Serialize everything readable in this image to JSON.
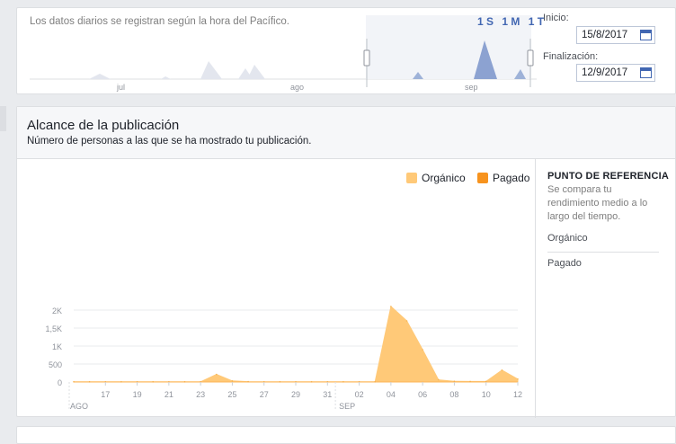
{
  "range": {
    "note": "Los datos diarios se registran según la hora del Pacífico.",
    "zoom": [
      "1 S",
      "1 M",
      "1 T"
    ],
    "start_label": "Inicio:",
    "start_value": "15/8/2017",
    "end_label": "Finalización:",
    "end_value": "12/9/2017",
    "month_labels": [
      "jul",
      "ago",
      "sep"
    ]
  },
  "reach": {
    "title": "Alcance de la publicación",
    "subtitle": "Número de personas a las que se ha mostrado tu publicación.",
    "legend": [
      {
        "label": "Orgánico",
        "color": "#ffc978"
      },
      {
        "label": "Pagado",
        "color": "#f7931e"
      }
    ]
  },
  "benchmark": {
    "title": "PUNTO DE REFERENCIA",
    "description": "Se compara tu rendimiento medio a lo largo del tiempo.",
    "rows": [
      "Orgánico",
      "Pagado"
    ]
  },
  "chart_data": {
    "type": "area",
    "x": [
      "15/8",
      "16/8",
      "17/8",
      "18/8",
      "19/8",
      "20/8",
      "21/8",
      "22/8",
      "23/8",
      "24/8",
      "25/8",
      "26/8",
      "27/8",
      "28/8",
      "29/8",
      "30/8",
      "31/8",
      "01/9",
      "02/9",
      "03/9",
      "04/9",
      "05/9",
      "06/9",
      "07/9",
      "08/9",
      "09/9",
      "10/9",
      "11/9",
      "12/9"
    ],
    "x_tick_labels": [
      "17",
      "19",
      "21",
      "23",
      "25",
      "27",
      "29",
      "31",
      "02",
      "04",
      "06",
      "08",
      "10",
      "12"
    ],
    "month_labels": [
      "AGO",
      "SEP"
    ],
    "y_tick_labels": [
      "0",
      "500",
      "1K",
      "1,5K",
      "2K"
    ],
    "ylim": [
      0,
      2200
    ],
    "series": [
      {
        "name": "Orgánico",
        "values": [
          5,
          5,
          5,
          5,
          5,
          5,
          5,
          5,
          5,
          210,
          30,
          10,
          5,
          5,
          5,
          5,
          5,
          5,
          5,
          5,
          2100,
          1700,
          900,
          60,
          20,
          15,
          15,
          330,
          80
        ]
      },
      {
        "name": "Pagado",
        "values": [
          0,
          0,
          0,
          0,
          0,
          0,
          0,
          0,
          0,
          0,
          0,
          0,
          0,
          0,
          0,
          0,
          0,
          0,
          0,
          0,
          0,
          0,
          0,
          0,
          0,
          0,
          0,
          0,
          0
        ]
      }
    ],
    "grid": true,
    "legend_position": "top-right"
  }
}
